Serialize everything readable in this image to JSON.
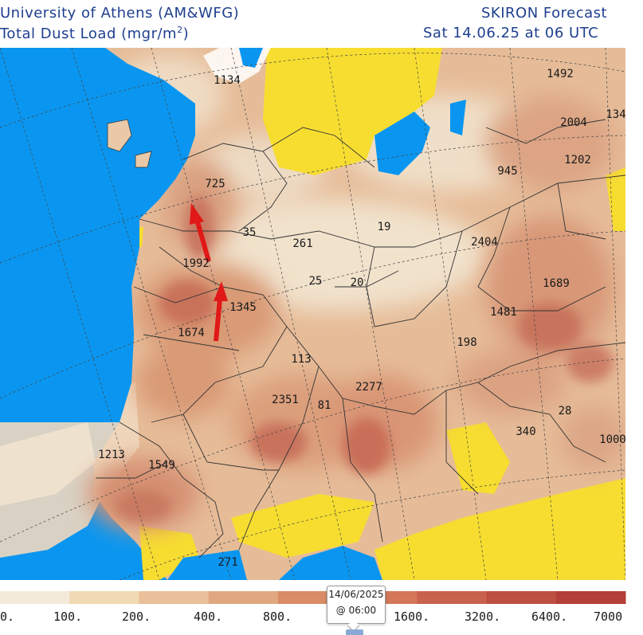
{
  "header": {
    "left_line1": "University of Athens (AM&WFG)",
    "left_line2": "Total Dust Load (mgr/m",
    "left_line2_sup": "2",
    "left_line2_close": ")",
    "right_line1": "SKIRON Forecast",
    "right_line2": "Sat 14.06.25 at 06 UTC"
  },
  "map_values": [
    {
      "id": "v1134",
      "text": "1134"
    },
    {
      "id": "v1492",
      "text": "1492"
    },
    {
      "id": "v2004",
      "text": "2004"
    },
    {
      "id": "v134",
      "text": "134"
    },
    {
      "id": "v945",
      "text": "945"
    },
    {
      "id": "v1202",
      "text": "1202"
    },
    {
      "id": "v725",
      "text": "725"
    },
    {
      "id": "v35",
      "text": "35"
    },
    {
      "id": "v261",
      "text": "261"
    },
    {
      "id": "v19",
      "text": "19"
    },
    {
      "id": "v2404",
      "text": "2404"
    },
    {
      "id": "v1992",
      "text": "1992"
    },
    {
      "id": "v25",
      "text": "25"
    },
    {
      "id": "v20",
      "text": "20"
    },
    {
      "id": "v1689",
      "text": "1689"
    },
    {
      "id": "v1345",
      "text": "1345"
    },
    {
      "id": "v1481",
      "text": "1481"
    },
    {
      "id": "v1674",
      "text": "1674"
    },
    {
      "id": "v198",
      "text": "198"
    },
    {
      "id": "v113",
      "text": "113"
    },
    {
      "id": "v2277",
      "text": "2277"
    },
    {
      "id": "v2351",
      "text": "2351"
    },
    {
      "id": "v81",
      "text": "81"
    },
    {
      "id": "v28",
      "text": "28"
    },
    {
      "id": "v340",
      "text": "340"
    },
    {
      "id": "v1000",
      "text": "1000"
    },
    {
      "id": "v1213",
      "text": "1213"
    },
    {
      "id": "v1549",
      "text": "1549"
    },
    {
      "id": "v271",
      "text": "271"
    }
  ],
  "legend": {
    "labels": [
      "0.",
      "100.",
      "200.",
      "400.",
      "800.",
      "1600.",
      "3200.",
      "6400.",
      "7000"
    ],
    "colors": [
      "#f3ead9",
      "#f0d9b3",
      "#e9c099",
      "#e0a780",
      "#d98c66",
      "#d37758",
      "#c9624c",
      "#bd4f42",
      "#b33f38"
    ]
  },
  "colors": {
    "ocean": "#0a96f0",
    "clean_land": "#f7dd30",
    "header_text": "#1f3f8f",
    "arrow": "#e01818"
  },
  "timeline_tooltip": {
    "date": "14/06/2025",
    "time": "@ 06:00"
  }
}
